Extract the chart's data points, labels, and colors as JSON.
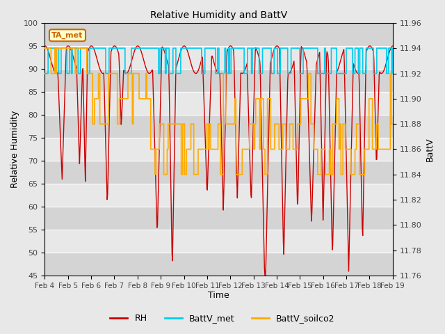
{
  "title": "Relative Humidity and BattV",
  "xlabel": "Time",
  "ylabel_left": "Relative Humidity",
  "ylabel_right": "BattV",
  "annotation_text": "TA_met",
  "annotation_color": "#cc6600",
  "background_color": "#e8e8e8",
  "plot_bg_color": "#e8e8e8",
  "rh_color": "#cc0000",
  "battv_met_color": "#00ccee",
  "battv_soilco2_color": "#ffaa00",
  "ylim_left": [
    45,
    100
  ],
  "ylim_right": [
    11.76,
    11.96
  ],
  "xtick_labels": [
    "Feb 4",
    "Feb 5",
    "Feb 6",
    "Feb 7",
    "Feb 8",
    "Feb 9",
    "Feb 10",
    "Feb 11",
    "Feb 12",
    "Feb 13",
    "Feb 14",
    "Feb 15",
    "Feb 16",
    "Feb 17",
    "Feb 18",
    "Feb 19"
  ],
  "yticks_left": [
    45,
    50,
    55,
    60,
    65,
    70,
    75,
    80,
    85,
    90,
    95,
    100
  ],
  "yticks_right": [
    11.76,
    11.78,
    11.8,
    11.82,
    11.84,
    11.86,
    11.88,
    11.9,
    11.92,
    11.94,
    11.96
  ],
  "legend_entries": [
    "RH",
    "BattV_met",
    "BattV_soilco2"
  ],
  "band_colors": [
    "#d4d4d4",
    "#e8e8e8"
  ],
  "figsize": [
    6.4,
    4.8
  ],
  "dpi": 100
}
